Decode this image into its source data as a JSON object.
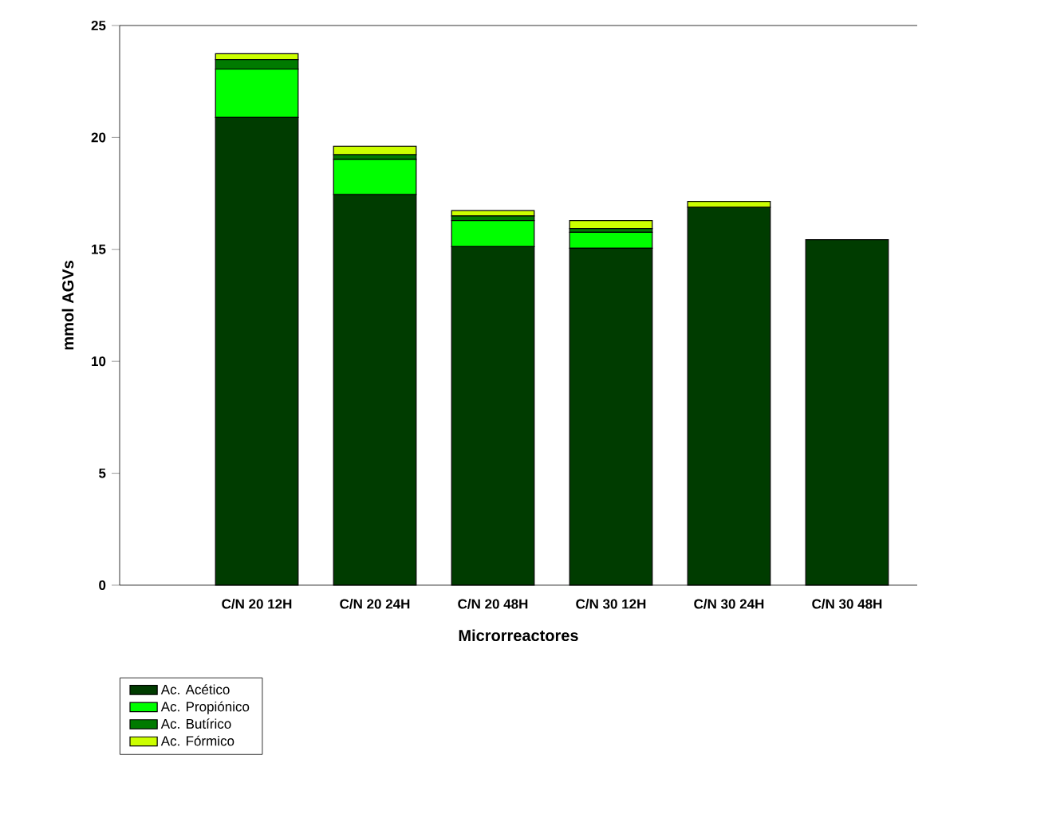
{
  "chart_data": {
    "type": "bar",
    "stacked": true,
    "xlabel": "Microrreactores",
    "ylabel": "mmol AGVs",
    "categories": [
      "C/N 20 12H",
      "C/N 20 24H",
      "C/N 20 48H",
      "C/N 30 12H",
      "C/N 30 24H",
      "C/N 30 48H"
    ],
    "series": [
      {
        "name": "Ac. Acético",
        "color": "#003c00",
        "values": [
          20.89,
          17.45,
          15.12,
          15.05,
          16.88,
          15.43
        ]
      },
      {
        "name": "Ac. Propiónico",
        "color": "#00ff00",
        "values": [
          2.16,
          1.57,
          1.17,
          0.71,
          0,
          0
        ]
      },
      {
        "name": "Ac. Butírico",
        "color": "#007a00",
        "values": [
          0.43,
          0.21,
          0.2,
          0.17,
          0,
          0
        ]
      },
      {
        "name": "Ac. Fórmico",
        "color": "#ccff00",
        "values": [
          0.26,
          0.38,
          0.24,
          0.36,
          0.26,
          0
        ]
      }
    ],
    "ylim": [
      0,
      25
    ],
    "yticks": [
      0,
      5,
      10,
      15,
      20,
      25
    ],
    "legend": "bottom left",
    "grid": false
  }
}
